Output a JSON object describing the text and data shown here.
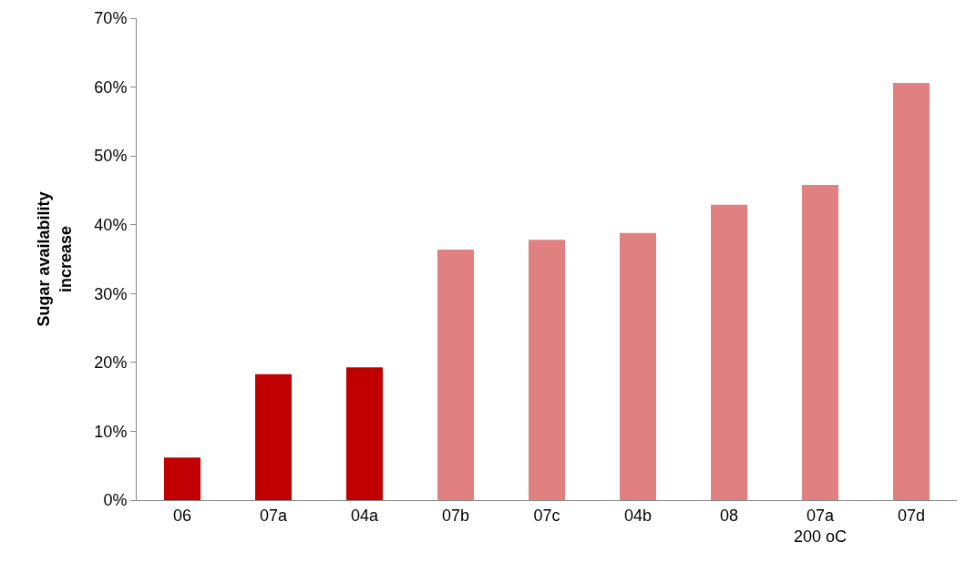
{
  "chart_data": {
    "type": "bar",
    "ylabel": "Sugar availability\nincrease",
    "categories": [
      "06",
      "07a",
      "04a",
      "07b",
      "07c",
      "04b",
      "08",
      "07a\n200 oC",
      "07d"
    ],
    "values": [
      0.062,
      0.183,
      0.193,
      0.364,
      0.378,
      0.388,
      0.429,
      0.458,
      0.606
    ],
    "colors": [
      "#c00000",
      "#c00000",
      "#c00000",
      "#e08080",
      "#e08080",
      "#e08080",
      "#e08080",
      "#e08080",
      "#e08080"
    ],
    "ylim": [
      0,
      0.7
    ],
    "yticks": [
      {
        "value": 0,
        "label": "0%"
      },
      {
        "value": 0.1,
        "label": "10%"
      },
      {
        "value": 0.2,
        "label": "20%"
      },
      {
        "value": 0.3,
        "label": "30%"
      },
      {
        "value": 0.4,
        "label": "40%"
      },
      {
        "value": 0.5,
        "label": "50%"
      },
      {
        "value": 0.6,
        "label": "60%"
      },
      {
        "value": 0.7,
        "label": "70%"
      }
    ],
    "grid": false
  }
}
